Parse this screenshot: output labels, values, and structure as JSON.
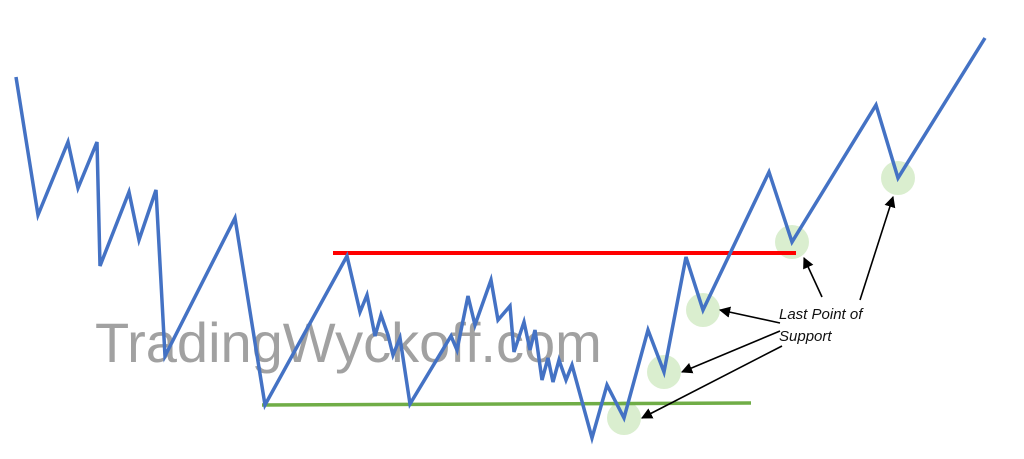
{
  "watermark": "TradingWyckoff.com",
  "annotation": {
    "line1": "Last Point of",
    "line2": "Support"
  },
  "colors": {
    "price_line": "#4472c4",
    "resistance_line": "#ff0000",
    "support_line": "#70ad47",
    "highlight": "#d3ebc7",
    "arrow": "#000000"
  }
}
